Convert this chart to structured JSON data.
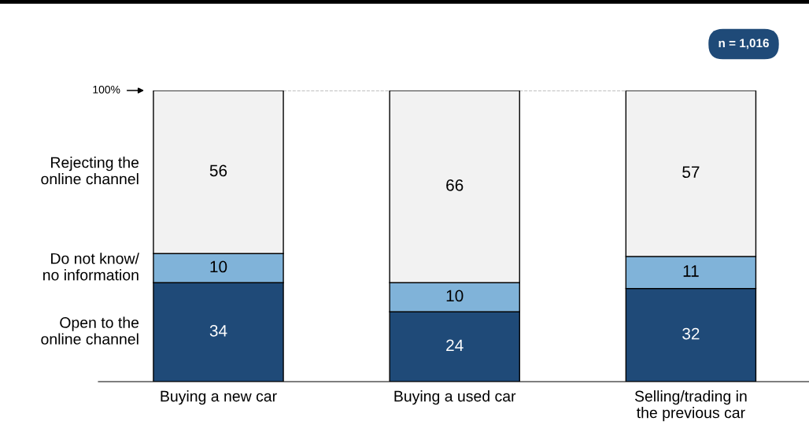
{
  "chart_data": {
    "type": "bar",
    "stacked": true,
    "data_labels": true,
    "grid": false,
    "categories": [
      "Buying a new car",
      "Buying a used car",
      "Selling/trading in\nthe previous car"
    ],
    "series": [
      {
        "name": "Open to the\nonline channel",
        "color": "#1f4a78",
        "values": [
          34,
          24,
          32
        ]
      },
      {
        "name": "Do not know/\nno information",
        "color": "#80b3d9",
        "values": [
          10,
          10,
          11
        ]
      },
      {
        "name": "Rejecting the\nonline channel",
        "color": "#f2f2f2",
        "values": [
          56,
          66,
          57
        ]
      }
    ],
    "ylim": [
      0,
      100
    ],
    "yticks": [
      {
        "value": 100,
        "label": "100%"
      }
    ],
    "ref_lines": [
      {
        "axis": "y",
        "value": 100,
        "line_style": "dashed",
        "color": "#808080"
      }
    ],
    "annotations": [
      "n = 1,016"
    ]
  }
}
